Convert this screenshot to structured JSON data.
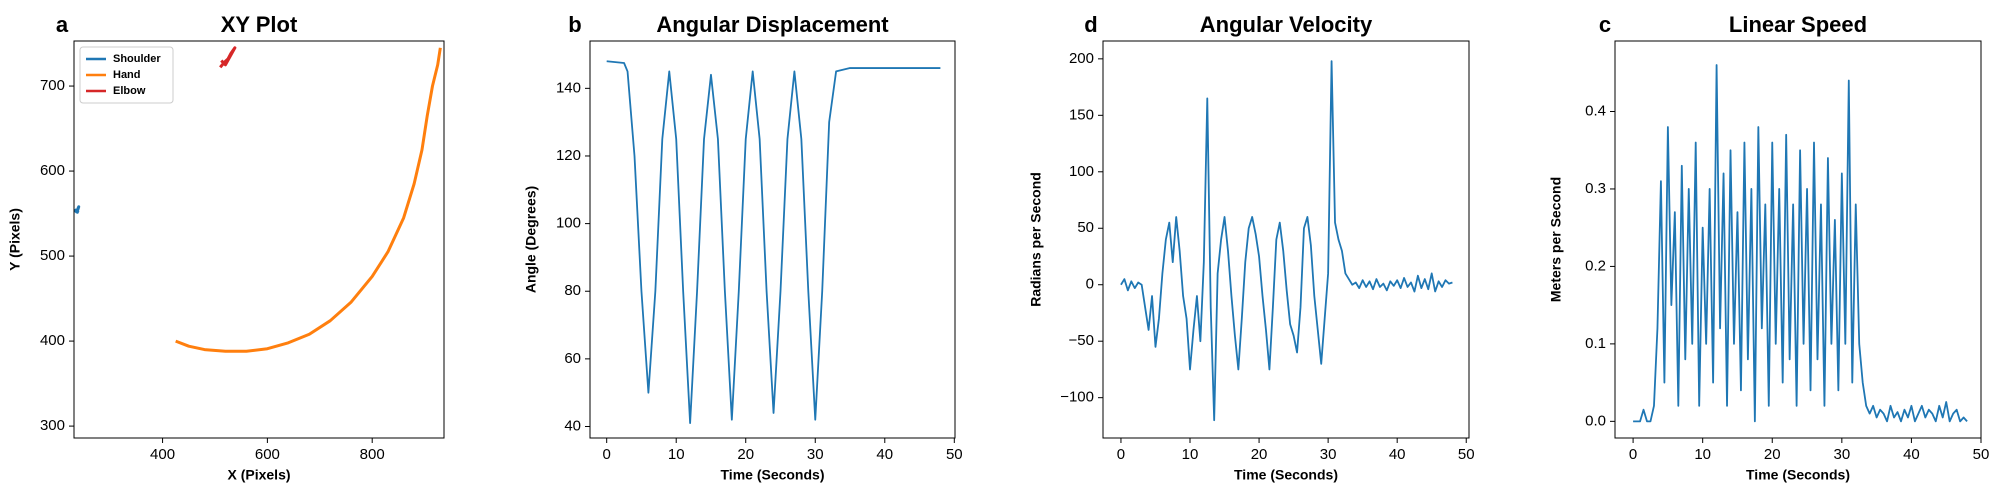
{
  "chart_data": [
    {
      "type": "line",
      "panel_label": "a",
      "title": "XY Plot",
      "xlabel": "X (Pixels)",
      "ylabel": "Y (Pixels)",
      "xlim": [
        231,
        937
      ],
      "ylim": [
        286,
        753
      ],
      "xticks": [
        400,
        600,
        800
      ],
      "yticks": [
        300,
        400,
        500,
        600,
        700
      ],
      "legend": "upper left",
      "series": [
        {
          "name": "Shoulder",
          "color": "#1f77b4",
          "x": [
            232,
            236,
            240,
            238,
            234,
            240
          ],
          "values": [
            555,
            552,
            558,
            554,
            553,
            551
          ]
        },
        {
          "name": "Hand",
          "color": "#ff7f0e",
          "x": [
            425,
            450,
            480,
            520,
            560,
            600,
            640,
            680,
            720,
            760,
            800,
            830,
            860,
            880,
            895,
            905,
            915,
            925,
            930
          ],
          "values": [
            400,
            394,
            390,
            388,
            388,
            391,
            398,
            408,
            424,
            446,
            476,
            505,
            545,
            585,
            625,
            665,
            700,
            725,
            745
          ]
        },
        {
          "name": "Elbow",
          "color": "#d62728",
          "x": [
            510,
            518,
            525,
            530,
            538,
            520,
            512
          ],
          "values": [
            722,
            728,
            732,
            738,
            745,
            725,
            730
          ]
        }
      ]
    },
    {
      "type": "line",
      "panel_label": "b",
      "title": "Angular Displacement",
      "xlabel": "Time (Seconds)",
      "ylabel": "Angle (Degrees)",
      "xlim": [
        -2.4,
        50.1
      ],
      "ylim": [
        36.6,
        154
      ],
      "xticks": [
        0,
        10,
        20,
        30,
        40,
        50
      ],
      "yticks": [
        40,
        60,
        80,
        100,
        120,
        140
      ],
      "series": [
        {
          "color": "#1f77b4",
          "x": [
            0,
            2.5,
            3,
            4,
            5,
            6,
            7,
            8,
            9,
            10,
            11,
            12,
            13,
            14,
            15,
            16,
            17,
            18,
            19,
            20,
            21,
            22,
            23,
            24,
            25,
            26,
            27,
            28,
            29,
            30,
            31,
            32,
            33,
            35,
            40,
            45,
            48
          ],
          "values": [
            148,
            147.5,
            145,
            120,
            80,
            50,
            80,
            125,
            145,
            125,
            80,
            41,
            80,
            125,
            144,
            125,
            80,
            42,
            80,
            125,
            145,
            125,
            80,
            44,
            80,
            125,
            145,
            125,
            80,
            42,
            80,
            130,
            145,
            146,
            146,
            146,
            146
          ]
        }
      ]
    },
    {
      "type": "line",
      "panel_label": "d",
      "title": "Angular Velocity",
      "xlabel": "Time (Seconds)",
      "ylabel": "Radians per Second",
      "xlim": [
        -2.6,
        50.4
      ],
      "ylim": [
        -135.7,
        215.8
      ],
      "xticks": [
        0,
        10,
        20,
        30,
        40,
        50
      ],
      "yticks": [
        {
          "value": -100,
          "label": "−100"
        },
        {
          "value": -50,
          "label": "−50"
        },
        0,
        50,
        100,
        150,
        200
      ],
      "series": [
        {
          "color": "#1f77b4",
          "x": [
            0,
            0.5,
            1,
            1.5,
            2,
            2.5,
            3,
            3.5,
            4,
            4.5,
            5,
            5.5,
            6,
            6.5,
            7,
            7.5,
            8,
            8.5,
            9,
            9.5,
            10,
            10.5,
            11,
            11.5,
            12,
            12.5,
            13,
            13.5,
            14,
            14.5,
            15,
            15.5,
            16,
            16.5,
            17,
            17.5,
            18,
            18.5,
            19,
            19.5,
            20,
            20.5,
            21,
            21.5,
            22,
            22.5,
            23,
            23.5,
            24,
            24.5,
            25,
            25.5,
            26,
            26.5,
            27,
            27.5,
            28,
            28.5,
            29,
            29.5,
            30,
            30.5,
            31,
            31.5,
            32,
            32.5,
            33,
            33.5,
            34,
            34.5,
            35,
            35.5,
            36,
            36.5,
            37,
            37.5,
            38,
            38.5,
            39,
            39.5,
            40,
            40.5,
            41,
            41.5,
            42,
            42.5,
            43,
            43.5,
            44,
            44.5,
            45,
            45.5,
            46,
            46.5,
            47,
            47.5,
            48
          ],
          "values": [
            0,
            5,
            -5,
            3,
            -3,
            2,
            0,
            -20,
            -40,
            -10,
            -55,
            -30,
            10,
            40,
            55,
            20,
            60,
            30,
            -10,
            -30,
            -75,
            -40,
            -10,
            -50,
            20,
            165,
            -20,
            -120,
            10,
            40,
            60,
            30,
            -10,
            -45,
            -75,
            -30,
            20,
            50,
            60,
            45,
            25,
            -10,
            -40,
            -75,
            -20,
            40,
            55,
            30,
            -5,
            -35,
            -45,
            -60,
            -20,
            50,
            60,
            35,
            -10,
            -40,
            -70,
            -30,
            10,
            198,
            55,
            40,
            30,
            10,
            5,
            0,
            2,
            -3,
            4,
            -2,
            3,
            -4,
            5,
            -2,
            1,
            -5,
            3,
            -1,
            4,
            -3,
            6,
            -2,
            2,
            -6,
            8,
            -3,
            5,
            -4,
            10,
            -6,
            3,
            -2,
            4,
            1,
            2
          ]
        }
      ]
    },
    {
      "type": "line",
      "panel_label": "c",
      "title": "Linear Speed",
      "xlabel": "Time (Seconds)",
      "ylabel": "Meters per Second",
      "xlim": [
        -2.6,
        50.0
      ],
      "ylim": [
        -0.0215,
        0.491
      ],
      "xticks": [
        0,
        10,
        20,
        30,
        40,
        50
      ],
      "yticks": [
        {
          "value": 0,
          "label": "0.0"
        },
        0.1,
        0.2,
        0.3,
        0.4
      ],
      "series": [
        {
          "color": "#1f77b4",
          "x": [
            0,
            0.5,
            1,
            1.5,
            2,
            2.5,
            3,
            3.5,
            4,
            4.5,
            5,
            5.5,
            6,
            6.5,
            7,
            7.5,
            8,
            8.5,
            9,
            9.5,
            10,
            10.5,
            11,
            11.5,
            12,
            12.5,
            13,
            13.5,
            14,
            14.5,
            15,
            15.5,
            16,
            16.5,
            17,
            17.5,
            18,
            18.5,
            19,
            19.5,
            20,
            20.5,
            21,
            21.5,
            22,
            22.5,
            23,
            23.5,
            24,
            24.5,
            25,
            25.5,
            26,
            26.5,
            27,
            27.5,
            28,
            28.5,
            29,
            29.5,
            30,
            30.5,
            31,
            31.5,
            32,
            32.5,
            33,
            33.5,
            34,
            34.5,
            35,
            35.5,
            36,
            36.5,
            37,
            37.5,
            38,
            38.5,
            39,
            39.5,
            40,
            40.5,
            41,
            41.5,
            42,
            42.5,
            43,
            43.5,
            44,
            44.5,
            45,
            45.5,
            46,
            46.5,
            47,
            47.5,
            48
          ],
          "values": [
            0,
            0,
            0,
            0.015,
            0,
            0,
            0.02,
            0.12,
            0.31,
            0.05,
            0.38,
            0.15,
            0.27,
            0.02,
            0.33,
            0.08,
            0.3,
            0.1,
            0.36,
            0.02,
            0.25,
            0.1,
            0.3,
            0.05,
            0.46,
            0.12,
            0.32,
            0.02,
            0.35,
            0.1,
            0.27,
            0.04,
            0.36,
            0.08,
            0.3,
            0,
            0.38,
            0.12,
            0.28,
            0.02,
            0.36,
            0.1,
            0.3,
            0.05,
            0.37,
            0.08,
            0.28,
            0.02,
            0.35,
            0.1,
            0.3,
            0.04,
            0.36,
            0.08,
            0.28,
            0.02,
            0.34,
            0.1,
            0.26,
            0.04,
            0.32,
            0.1,
            0.44,
            0.05,
            0.28,
            0.1,
            0.05,
            0.02,
            0.01,
            0.02,
            0.005,
            0.015,
            0.01,
            0,
            0.02,
            0.005,
            0.012,
            0,
            0.015,
            0.005,
            0.02,
            0,
            0.01,
            0.02,
            0.005,
            0.015,
            0.01,
            0,
            0.02,
            0.005,
            0.025,
            0,
            0.01,
            0.015,
            0,
            0.005,
            0
          ]
        }
      ]
    }
  ]
}
